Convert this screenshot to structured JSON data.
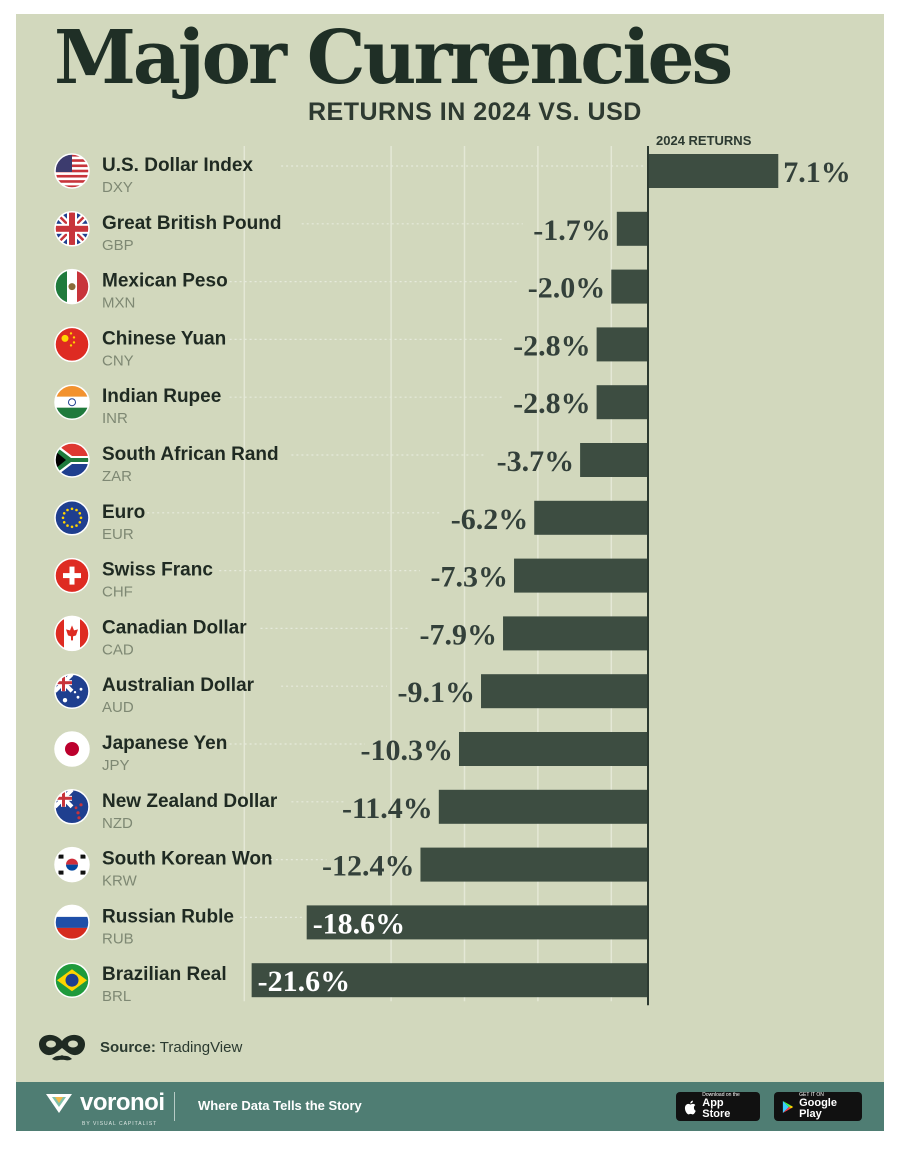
{
  "title": "Major Currencies",
  "subtitle": "RETURNS IN 2024 VS. USD",
  "source": {
    "label": "Source:",
    "value": "TradingView"
  },
  "footer": {
    "brand": "voronoi",
    "byline": "BY VISUAL CAPITALIST",
    "tagline": "Where Data Tells the Story",
    "app_store": {
      "small": "Download on the",
      "big": "App Store"
    },
    "google_play": {
      "small": "GET IT ON",
      "big": "Google Play"
    }
  },
  "colors": {
    "background": "#d2d8bd",
    "bar": "#3d4d41",
    "footer": "#4f7d73",
    "text": "#1f2f26"
  },
  "chart_data": {
    "type": "bar",
    "orientation": "horizontal",
    "column_header": "2024 RETURNS",
    "value_suffix": "%",
    "xlim": [
      -22,
      8
    ],
    "grid": true,
    "categories": [
      "U.S. Dollar Index",
      "Great British Pound",
      "Mexican Peso",
      "Chinese Yuan",
      "Indian Rupee",
      "South African Rand",
      "Euro",
      "Swiss Franc",
      "Canadian Dollar",
      "Australian Dollar",
      "Japanese Yen",
      "New Zealand Dollar",
      "South Korean Won",
      "Russian Ruble",
      "Brazilian Real"
    ],
    "codes": [
      "DXY",
      "GBP",
      "MXN",
      "CNY",
      "INR",
      "ZAR",
      "EUR",
      "CHF",
      "CAD",
      "AUD",
      "JPY",
      "NZD",
      "KRW",
      "RUB",
      "BRL"
    ],
    "flag_icons": [
      "usa-flag-icon",
      "uk-flag-icon",
      "mexico-flag-icon",
      "china-flag-icon",
      "india-flag-icon",
      "south-africa-flag-icon",
      "eu-flag-icon",
      "switzerland-flag-icon",
      "canada-flag-icon",
      "australia-flag-icon",
      "japan-flag-icon",
      "new-zealand-flag-icon",
      "south-korea-flag-icon",
      "russia-flag-icon",
      "brazil-flag-icon"
    ],
    "labels": [
      "7.1%",
      "-1.7%",
      "-2.0%",
      "-2.8%",
      "-2.8%",
      "-3.7%",
      "-6.2%",
      "-7.3%",
      "-7.9%",
      "-9.1%",
      "-10.3%",
      "-11.4%",
      "-12.4%",
      "-18.6%",
      "-21.6%"
    ],
    "values": [
      7.1,
      -1.7,
      -2.0,
      -2.8,
      -2.8,
      -3.7,
      -6.2,
      -7.3,
      -7.9,
      -9.1,
      -10.3,
      -11.4,
      -12.4,
      -18.6,
      -21.6
    ]
  }
}
